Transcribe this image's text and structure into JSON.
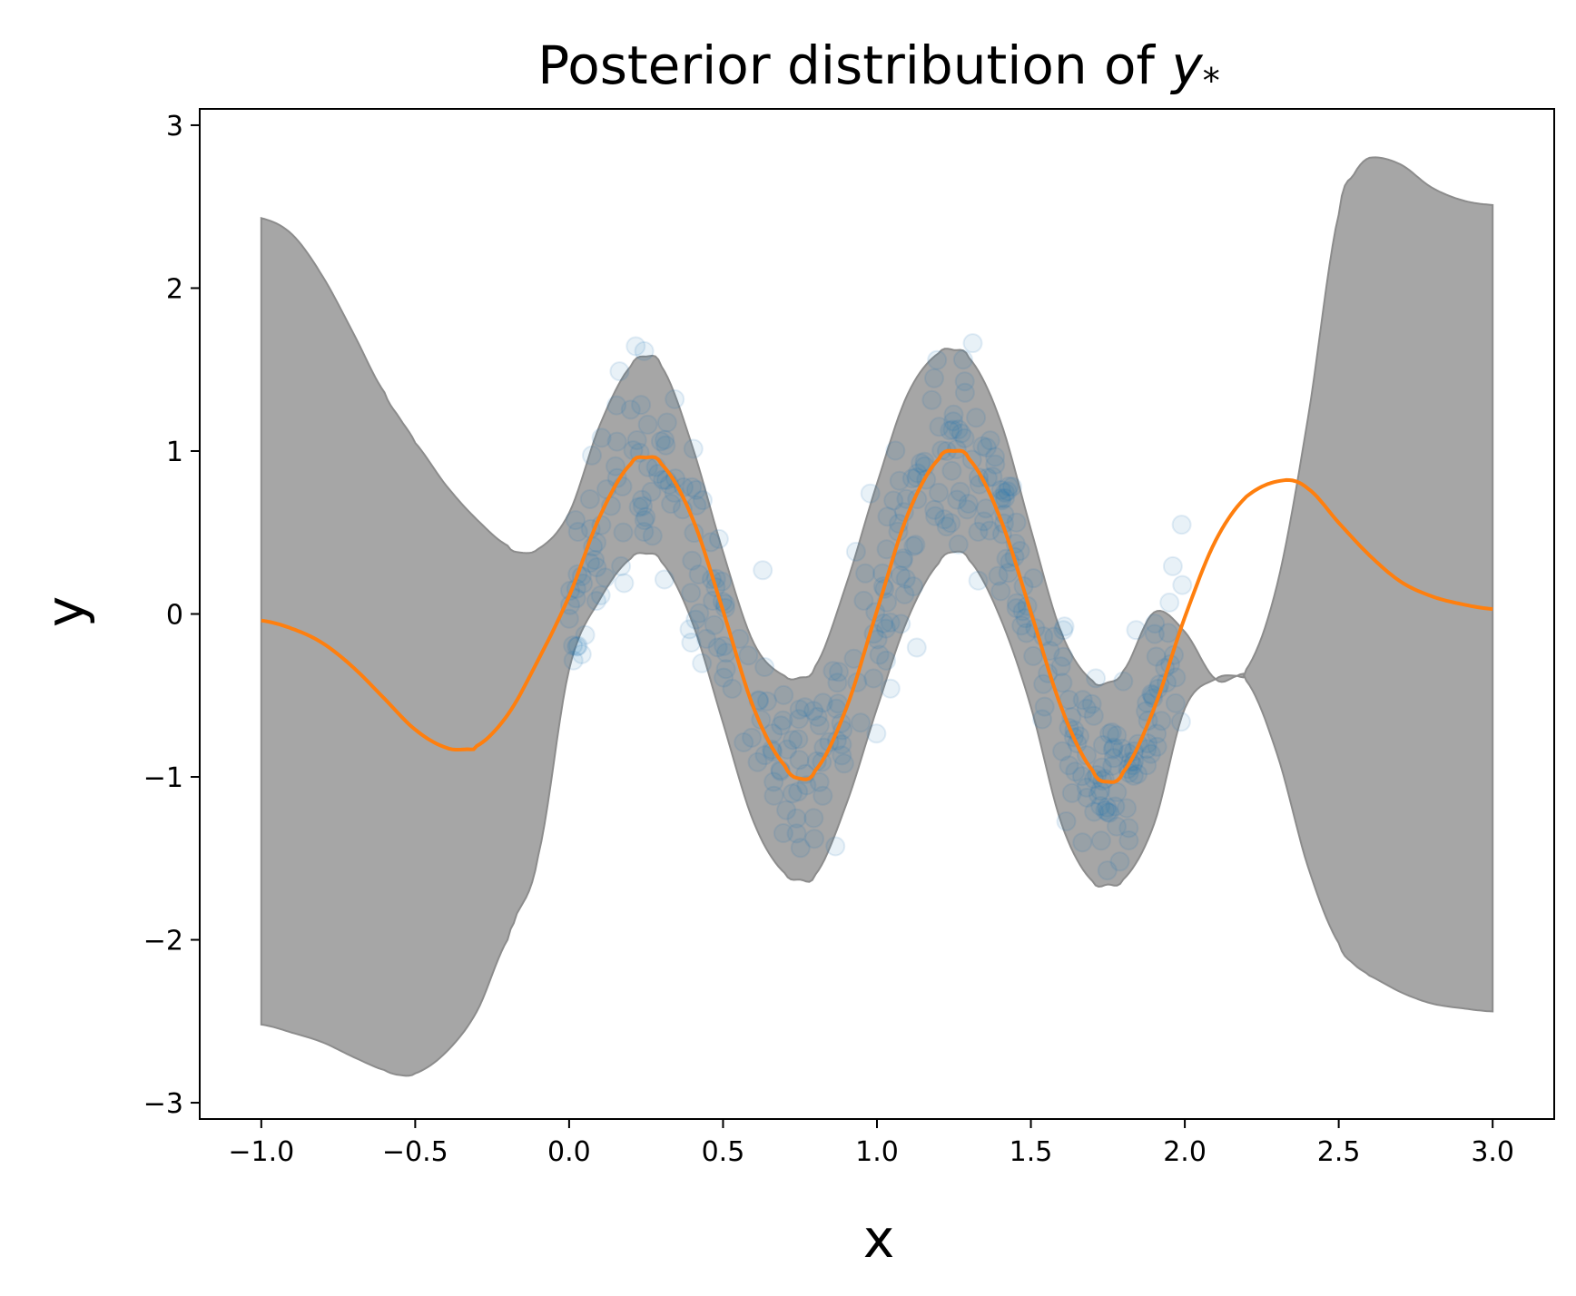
{
  "chart_data": {
    "type": "line",
    "title": "Posterior distribution of ",
    "title_math": "y",
    "title_subscript": "*",
    "xlabel": "x",
    "ylabel": "y",
    "xlim": [
      -1.2,
      3.2
    ],
    "ylim": [
      -3.1,
      3.1
    ],
    "xticks": [
      -1.0,
      -0.5,
      0.0,
      0.5,
      1.0,
      1.5,
      2.0,
      2.5,
      3.0
    ],
    "xtick_labels": [
      "−1.0",
      "−0.5",
      "0.0",
      "0.5",
      "1.0",
      "1.5",
      "2.0",
      "2.5",
      "3.0"
    ],
    "yticks": [
      3,
      2,
      1,
      0,
      -1,
      -2,
      -3
    ],
    "ytick_labels": [
      "3",
      "2",
      "1",
      "0",
      "−1",
      "−2",
      "−3"
    ],
    "grid": false,
    "colors": {
      "band": "#a6a6a6",
      "band_edge": "#8c8c8c",
      "mean": "#ff7f0e",
      "points": "#1f77b4"
    },
    "series": [
      {
        "type": "band",
        "x": [
          -1.0,
          -0.9,
          -0.8,
          -0.7,
          -0.6,
          -0.55,
          -0.5,
          -0.4,
          -0.3,
          -0.2,
          -0.17,
          -0.1,
          0.0,
          0.1,
          0.2,
          0.25,
          0.3,
          0.4,
          0.5,
          0.6,
          0.7,
          0.75,
          0.8,
          0.9,
          1.0,
          1.1,
          1.2,
          1.25,
          1.3,
          1.4,
          1.5,
          1.6,
          1.7,
          1.75,
          1.8,
          1.9,
          2.0,
          2.1,
          2.17,
          2.2,
          2.3,
          2.4,
          2.5,
          2.55,
          2.6,
          2.7,
          2.8,
          2.9,
          3.0
        ],
        "upper": [
          2.43,
          2.33,
          2.07,
          1.72,
          1.36,
          1.2,
          1.05,
          0.79,
          0.58,
          0.42,
          0.38,
          0.4,
          0.62,
          1.16,
          1.52,
          1.58,
          1.52,
          1.03,
          0.38,
          -0.18,
          -0.38,
          -0.39,
          -0.32,
          0.18,
          0.8,
          1.35,
          1.6,
          1.62,
          1.57,
          1.19,
          0.52,
          -0.12,
          -0.41,
          -0.42,
          -0.35,
          0.01,
          -0.11,
          -0.4,
          -0.38,
          -0.34,
          0.18,
          1.2,
          2.45,
          2.7,
          2.8,
          2.76,
          2.62,
          2.54,
          2.51
        ],
        "lower": [
          -2.52,
          -2.57,
          -2.63,
          -2.72,
          -2.8,
          -2.83,
          -2.82,
          -2.69,
          -2.44,
          -2.0,
          -1.84,
          -1.48,
          -0.34,
          0.09,
          0.34,
          0.37,
          0.32,
          -0.05,
          -0.67,
          -1.28,
          -1.59,
          -1.63,
          -1.6,
          -1.17,
          -0.58,
          -0.03,
          0.31,
          0.38,
          0.33,
          -0.02,
          -0.57,
          -1.29,
          -1.64,
          -1.66,
          -1.63,
          -1.29,
          -0.58,
          -0.4,
          -0.38,
          -0.41,
          -0.86,
          -1.55,
          -2.02,
          -2.15,
          -2.22,
          -2.32,
          -2.39,
          -2.42,
          -2.44
        ]
      },
      {
        "type": "line",
        "x": [
          -1.0,
          -0.9,
          -0.8,
          -0.7,
          -0.6,
          -0.5,
          -0.4,
          -0.33,
          -0.3,
          -0.2,
          -0.1,
          0.0,
          0.1,
          0.2,
          0.25,
          0.3,
          0.4,
          0.5,
          0.6,
          0.7,
          0.75,
          0.8,
          0.9,
          1.0,
          1.1,
          1.2,
          1.25,
          1.3,
          1.4,
          1.5,
          1.6,
          1.7,
          1.75,
          1.8,
          1.9,
          2.0,
          2.1,
          2.2,
          2.32,
          2.4,
          2.5,
          2.6,
          2.7,
          2.8,
          2.9,
          3.0
        ],
        "y": [
          -0.04,
          -0.09,
          -0.18,
          -0.33,
          -0.52,
          -0.71,
          -0.82,
          -0.83,
          -0.81,
          -0.62,
          -0.28,
          0.11,
          0.6,
          0.92,
          0.96,
          0.92,
          0.59,
          0.02,
          -0.58,
          -0.93,
          -1.01,
          -0.96,
          -0.58,
          0.02,
          0.61,
          0.95,
          1.0,
          0.95,
          0.59,
          0.01,
          -0.58,
          -0.96,
          -1.03,
          -0.97,
          -0.58,
          -0.02,
          0.45,
          0.72,
          0.82,
          0.77,
          0.56,
          0.36,
          0.2,
          0.11,
          0.06,
          0.03
        ]
      },
      {
        "type": "scatter",
        "description_count": 400,
        "noise_sd": 0.3
      }
    ]
  }
}
